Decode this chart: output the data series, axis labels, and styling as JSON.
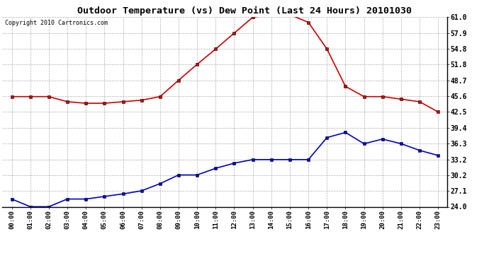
{
  "title": "Outdoor Temperature (vs) Dew Point (Last 24 Hours) 20101030",
  "copyright": "Copyright 2010 Cartronics.com",
  "x_labels": [
    "00:00",
    "01:00",
    "02:00",
    "03:00",
    "04:00",
    "05:00",
    "06:00",
    "07:00",
    "08:00",
    "09:00",
    "10:00",
    "11:00",
    "12:00",
    "13:00",
    "14:00",
    "15:00",
    "16:00",
    "17:00",
    "18:00",
    "19:00",
    "20:00",
    "21:00",
    "22:00",
    "23:00"
  ],
  "temp_data": [
    45.5,
    45.5,
    45.5,
    44.5,
    44.2,
    44.2,
    44.5,
    44.8,
    45.5,
    48.7,
    51.8,
    54.8,
    57.9,
    61.0,
    61.5,
    61.5,
    60.0,
    54.8,
    47.5,
    45.5,
    45.5,
    45.0,
    44.5,
    42.5
  ],
  "dew_data": [
    25.5,
    24.0,
    24.0,
    25.5,
    25.5,
    26.0,
    26.5,
    27.1,
    28.5,
    30.2,
    30.2,
    31.5,
    32.5,
    33.2,
    33.2,
    33.2,
    33.2,
    37.5,
    38.5,
    36.3,
    37.2,
    36.3,
    35.0,
    34.0
  ],
  "y_ticks": [
    24.0,
    27.1,
    30.2,
    33.2,
    36.3,
    39.4,
    42.5,
    45.6,
    48.7,
    51.8,
    54.8,
    57.9,
    61.0
  ],
  "y_min": 24.0,
  "y_max": 61.0,
  "temp_color": "#cc0000",
  "dew_color": "#0000cc",
  "bg_color": "#ffffff",
  "grid_color": "#b0b0b0",
  "title_fontsize": 9.5,
  "copyright_fontsize": 6.0,
  "tick_fontsize": 6.5,
  "ytick_fontsize": 7.0
}
